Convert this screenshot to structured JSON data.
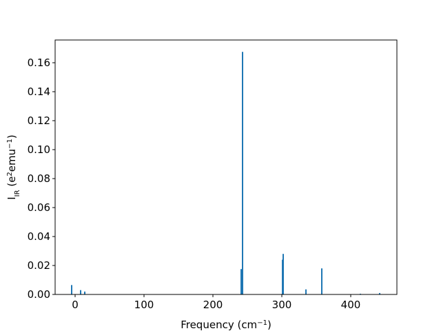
{
  "chart_data": {
    "type": "bar",
    "color": "#1f77b4",
    "x": [
      -5,
      8,
      14,
      241,
      243,
      301,
      302,
      335,
      358,
      414,
      442
    ],
    "values": [
      0.0065,
      0.003,
      0.002,
      0.0175,
      0.1675,
      0.024,
      0.028,
      0.0035,
      0.018,
      0.0005,
      0.001
    ],
    "xlim": [
      -29,
      467
    ],
    "ylim": [
      0,
      0.1757
    ],
    "xticks": [
      0,
      100,
      200,
      300,
      400
    ],
    "yticks": [
      {
        "value": 0,
        "label": "0.00"
      },
      {
        "value": 0.02,
        "label": "0.02"
      },
      {
        "value": 0.04,
        "label": "0.04"
      },
      {
        "value": 0.06,
        "label": "0.06"
      },
      {
        "value": 0.08,
        "label": "0.08"
      },
      {
        "value": 0.1,
        "label": "0.10"
      },
      {
        "value": 0.12,
        "label": "0.12"
      },
      {
        "value": 0.14,
        "label": "0.14"
      },
      {
        "value": 0.16,
        "label": "0.16"
      }
    ],
    "xlabel": [
      {
        "text": "Frequency (cm"
      },
      {
        "text": "−1",
        "sup": true
      },
      {
        "text": ")"
      }
    ],
    "ylabel": [
      {
        "text": "I"
      },
      {
        "text": "IR",
        "sub": true
      },
      {
        "text": " (e"
      },
      {
        "text": "2",
        "sup": true
      },
      {
        "text": "emu"
      },
      {
        "text": "−1",
        "sup": true
      },
      {
        "text": ")"
      }
    ],
    "grid": false
  }
}
